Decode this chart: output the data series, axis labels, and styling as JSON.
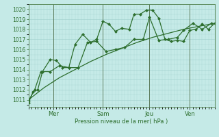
{
  "xlabel": "Pression niveau de la mer( hPa )",
  "background_color": "#c5eae7",
  "grid_color": "#9ecfcc",
  "line_color": "#2d6e2d",
  "spine_color": "#5a8a5a",
  "vline_color": "#5a7a5a",
  "ylim": [
    1010.3,
    1020.5
  ],
  "yticks": [
    1011,
    1012,
    1013,
    1014,
    1015,
    1016,
    1017,
    1018,
    1019,
    1020
  ],
  "day_labels": [
    "Mer",
    "Sam",
    "Jeu",
    "Ven"
  ],
  "day_positions": [
    16,
    48,
    78,
    104
  ],
  "xlim": [
    0,
    120
  ],
  "vline_positions": [
    16,
    48,
    78,
    104
  ],
  "line1_x": [
    0,
    3,
    6,
    9,
    14,
    18,
    22,
    26,
    30,
    35,
    40,
    44,
    48,
    52,
    56,
    60,
    65,
    68,
    72,
    76,
    80,
    84,
    88,
    92,
    96,
    100,
    104,
    108,
    112,
    116,
    120
  ],
  "line1_y": [
    1010.7,
    1011.8,
    1012.0,
    1013.8,
    1015.0,
    1014.9,
    1014.2,
    1014.2,
    1016.5,
    1017.5,
    1016.7,
    1017.0,
    1018.8,
    1018.5,
    1017.8,
    1018.1,
    1018.0,
    1019.5,
    1019.5,
    1019.9,
    1019.9,
    1019.1,
    1017.0,
    1016.8,
    1016.9,
    1016.8,
    1017.9,
    1018.0,
    1018.5,
    1018.0,
    1018.6
  ],
  "line2_x": [
    0,
    4,
    8,
    14,
    20,
    26,
    32,
    38,
    44,
    50,
    56,
    62,
    68,
    74,
    78,
    84,
    90,
    96,
    100,
    106,
    112,
    118
  ],
  "line2_y": [
    1010.9,
    1012.0,
    1013.8,
    1013.8,
    1014.4,
    1014.2,
    1014.2,
    1016.7,
    1016.8,
    1015.8,
    1016.0,
    1016.2,
    1017.0,
    1017.0,
    1019.2,
    1016.9,
    1017.0,
    1017.2,
    1017.9,
    1018.6,
    1018.0,
    1018.6
  ],
  "line3_x": [
    0,
    10,
    20,
    30,
    40,
    50,
    60,
    70,
    80,
    90,
    100,
    110,
    120
  ],
  "line3_y": [
    1011.0,
    1012.2,
    1013.2,
    1014.0,
    1014.8,
    1015.5,
    1016.1,
    1016.7,
    1017.2,
    1017.6,
    1018.0,
    1018.3,
    1018.6
  ],
  "marker_size": 2.5,
  "linewidth": 0.9,
  "ylabel_fontsize": 6,
  "ytick_fontsize": 5.5,
  "xtick_fontsize": 6
}
